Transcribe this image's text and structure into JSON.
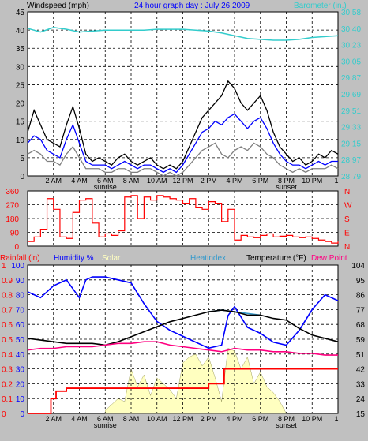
{
  "colors": {
    "bg": "#c0c0c0",
    "plot_bg": "#ffffff",
    "grid": "#000000",
    "wind_avg": "#0000ff",
    "wind_gust": "#000000",
    "wind_low": "#808080",
    "barometer": "#33cccc",
    "wind_dir": "#ff0000",
    "rainfall": "#ff0000",
    "humidity": "#0000ff",
    "solar": "#ffffc0",
    "heatindex": "#3399cc",
    "temperature": "#000000",
    "dew_point": "#ff0080",
    "title": "#0000ff"
  },
  "header": {
    "wind_label": "Windspeed (mph)",
    "title": "24 hour graph day : July 26 2009",
    "baro_label": "Barometer (in.)"
  },
  "legend": {
    "rainfall": "Rainfall (in)",
    "humidity": "Humidity %",
    "solar": "Solar",
    "heatindex": "Heatindex",
    "temperature": "Temperature (°F)",
    "dew_point": "Dew Point"
  },
  "x_axis": {
    "hours": [
      "2 AM",
      "4 AM",
      "6 AM",
      "8 AM",
      "10 AM",
      "12 PM",
      "2 PM",
      "4 PM",
      "6 PM",
      "8 PM",
      "10 PM",
      "1"
    ],
    "sunrise_label": "sunrise",
    "sunset_label": "sunset",
    "sunrise_hour": 6.0,
    "sunset_hour": 20.0
  },
  "chart_data": [
    {
      "type": "line",
      "panel": "wind_barometer",
      "x_range": [
        0,
        24
      ],
      "ylim_left": [
        0,
        45
      ],
      "ylim_right": [
        28.79,
        30.58
      ],
      "left_ticks": [
        "45",
        "40",
        "35",
        "30",
        "25",
        "20",
        "15",
        "10",
        "5",
        "0"
      ],
      "right_ticks": [
        "30.58",
        "30.40",
        "30.23",
        "30.05",
        "29.87",
        "29.69",
        "29.51",
        "29.33",
        "29.15",
        "28.97",
        "28.79"
      ],
      "series": [
        {
          "name": "Windspeed (mph)",
          "key": "wind_gust",
          "x": [
            0,
            0.5,
            1,
            1.5,
            2,
            2.5,
            3,
            3.5,
            4,
            4.5,
            5,
            5.5,
            6,
            6.5,
            7,
            7.5,
            8,
            8.5,
            9,
            9.5,
            10,
            10.5,
            11,
            11.5,
            12,
            12.5,
            13,
            13.5,
            14,
            14.5,
            15,
            15.5,
            16,
            16.5,
            17,
            17.5,
            18,
            18.5,
            19,
            19.5,
            20,
            20.5,
            21,
            21.5,
            22,
            22.5,
            23,
            23.5,
            24
          ],
          "values": [
            12,
            18,
            14,
            10,
            9,
            8,
            14,
            19,
            13,
            6,
            4,
            5,
            4,
            3,
            5,
            6,
            4,
            3,
            4,
            5,
            3,
            2,
            3,
            2,
            4,
            8,
            12,
            16,
            18,
            20,
            22,
            26,
            24,
            20,
            18,
            20,
            22,
            18,
            12,
            8,
            6,
            4,
            5,
            3,
            4,
            6,
            5,
            7,
            6
          ]
        },
        {
          "name": "Windspeed avg",
          "key": "wind_avg",
          "x": [
            0,
            0.5,
            1,
            1.5,
            2,
            2.5,
            3,
            3.5,
            4,
            4.5,
            5,
            5.5,
            6,
            6.5,
            7,
            7.5,
            8,
            8.5,
            9,
            9.5,
            10,
            10.5,
            11,
            11.5,
            12,
            12.5,
            13,
            13.5,
            14,
            14.5,
            15,
            15.5,
            16,
            16.5,
            17,
            17.5,
            18,
            18.5,
            19,
            19.5,
            20,
            20.5,
            21,
            21.5,
            22,
            22.5,
            23,
            23.5,
            24
          ],
          "values": [
            9,
            11,
            10,
            7,
            6,
            5,
            10,
            14,
            9,
            4,
            3,
            3,
            3,
            2,
            3,
            4,
            3,
            2,
            3,
            3,
            2,
            1,
            2,
            1,
            3,
            6,
            9,
            12,
            13,
            15,
            14,
            16,
            17,
            15,
            13,
            15,
            16,
            13,
            9,
            6,
            4,
            3,
            3,
            2,
            3,
            4,
            3,
            4,
            4
          ]
        },
        {
          "name": "Windspeed low",
          "key": "wind_low",
          "x": [
            0,
            0.5,
            1,
            1.5,
            2,
            2.5,
            3,
            3.5,
            4,
            4.5,
            5,
            5.5,
            6,
            6.5,
            7,
            7.5,
            8,
            8.5,
            9,
            9.5,
            10,
            10.5,
            11,
            11.5,
            12,
            12.5,
            13,
            13.5,
            14,
            14.5,
            15,
            15.5,
            16,
            16.5,
            17,
            17.5,
            18,
            18.5,
            19,
            19.5,
            20,
            20.5,
            21,
            21.5,
            22,
            22.5,
            23,
            23.5,
            24
          ],
          "values": [
            6,
            7,
            6,
            4,
            4,
            3,
            6,
            8,
            5,
            2,
            2,
            2,
            1,
            1,
            2,
            2,
            1,
            1,
            2,
            2,
            1,
            0,
            1,
            0,
            1,
            3,
            5,
            7,
            8,
            9,
            6,
            5,
            7,
            8,
            7,
            9,
            8,
            6,
            5,
            3,
            2,
            1,
            2,
            1,
            2,
            2,
            2,
            3,
            2
          ]
        },
        {
          "name": "Barometer (in.)",
          "key": "barometer",
          "x": [
            0,
            1,
            2,
            3,
            4,
            5,
            6,
            7,
            8,
            9,
            10,
            11,
            12,
            13,
            14,
            15,
            16,
            17,
            18,
            19,
            20,
            21,
            22,
            23,
            24
          ],
          "values": [
            30.4,
            30.36,
            30.41,
            30.39,
            30.36,
            30.37,
            30.38,
            30.38,
            30.38,
            30.38,
            30.39,
            30.39,
            30.39,
            30.38,
            30.37,
            30.35,
            30.32,
            30.29,
            30.28,
            30.27,
            30.27,
            30.28,
            30.3,
            30.31,
            30.32
          ]
        }
      ]
    },
    {
      "type": "line",
      "panel": "wind_direction",
      "x_range": [
        0,
        24
      ],
      "ylim": [
        0,
        360
      ],
      "left_ticks": [
        "360",
        "270",
        "180",
        "90",
        "0"
      ],
      "right_ticks": [
        "N",
        "W",
        "S",
        "E",
        "N"
      ],
      "series": [
        {
          "name": "Wind direction",
          "key": "wind_dir",
          "x": [
            0,
            0.5,
            1,
            1.5,
            2,
            2.5,
            3,
            3.5,
            4,
            4.5,
            5,
            5.5,
            6,
            6.5,
            7,
            7.5,
            8,
            8.5,
            9,
            9.5,
            10,
            10.5,
            11,
            11.5,
            12,
            12.5,
            13,
            13.5,
            14,
            14.5,
            15,
            15.5,
            16,
            16.5,
            17,
            17.5,
            18,
            18.5,
            19,
            19.5,
            20,
            20.5,
            21,
            21.5,
            22,
            22.5,
            23,
            23.5,
            24
          ],
          "values": [
            30,
            60,
            110,
            310,
            240,
            60,
            50,
            220,
            300,
            310,
            150,
            60,
            80,
            70,
            100,
            320,
            330,
            180,
            320,
            300,
            330,
            320,
            310,
            300,
            280,
            310,
            250,
            240,
            290,
            280,
            160,
            240,
            40,
            70,
            60,
            55,
            70,
            80,
            60,
            65,
            70,
            60,
            55,
            60,
            50,
            40,
            30,
            20,
            30
          ]
        }
      ]
    },
    {
      "type": "line",
      "panel": "temp_humidity",
      "x_range": [
        0,
        24
      ],
      "rain_ticks": [
        "1",
        "0.9",
        "0.8",
        "0.7",
        "0.6",
        "0.5",
        "0.4",
        "0.3",
        "0.2",
        "0.1",
        "0"
      ],
      "humidity_ticks": [
        "100",
        "90",
        "80",
        "70",
        "60",
        "50",
        "40",
        "30",
        "20",
        "10",
        "0"
      ],
      "temp_ticks": [
        "104",
        "95",
        "86",
        "77",
        "68",
        "59",
        "51",
        "42",
        "33",
        "24",
        "15"
      ],
      "ylim_rain": [
        0,
        1
      ],
      "ylim_humidity": [
        0,
        100
      ],
      "ylim_temp": [
        15,
        104
      ],
      "series": [
        {
          "name": "Rainfall (in)",
          "key": "rainfall",
          "x": [
            0,
            1.3,
            1.8,
            2.2,
            3.0,
            13.9,
            14.0,
            15.1,
            15.2,
            24
          ],
          "values": [
            0,
            0,
            0.1,
            0.15,
            0.17,
            0.17,
            0.2,
            0.2,
            0.3,
            0.3
          ]
        },
        {
          "name": "Humidity %",
          "key": "humidity",
          "x": [
            0,
            1,
            2,
            3,
            3.5,
            4,
            4.5,
            5,
            6,
            7,
            8,
            9,
            10,
            11,
            12,
            13,
            14,
            15,
            15.5,
            16,
            17,
            18,
            19,
            20,
            21,
            22,
            23,
            24
          ],
          "values": [
            82,
            78,
            86,
            90,
            84,
            78,
            90,
            92,
            92,
            90,
            88,
            74,
            62,
            56,
            52,
            48,
            44,
            46,
            66,
            72,
            58,
            54,
            48,
            46,
            56,
            70,
            80,
            76
          ]
        },
        {
          "name": "Solar",
          "key": "solar",
          "x": [
            6,
            6.5,
            7,
            7.5,
            8,
            8.5,
            9,
            9.5,
            10,
            10.5,
            11,
            11.5,
            12,
            12.5,
            13,
            13.5,
            14,
            14.5,
            15,
            15.5,
            16,
            16.5,
            17,
            17.5,
            18,
            18.5,
            19,
            19.5,
            20
          ],
          "values": [
            2,
            6,
            10,
            8,
            30,
            18,
            26,
            12,
            24,
            20,
            16,
            10,
            34,
            38,
            40,
            32,
            38,
            24,
            8,
            44,
            42,
            30,
            38,
            20,
            28,
            18,
            14,
            8,
            0
          ]
        },
        {
          "name": "Heatindex",
          "key": "heatindex",
          "x": [
            14,
            15,
            16,
            17,
            18
          ],
          "values": [
            76,
            77,
            76,
            75,
            74
          ]
        },
        {
          "name": "Temperature (°F)",
          "key": "temperature",
          "x": [
            0,
            1,
            2,
            3,
            4,
            5,
            6,
            7,
            8,
            9,
            10,
            11,
            12,
            13,
            14,
            15,
            16,
            17,
            18,
            19,
            20,
            21,
            22,
            23,
            24
          ],
          "values": [
            60,
            59,
            58,
            57,
            57,
            57,
            56,
            58,
            61,
            64,
            67,
            70,
            72,
            74,
            76,
            77,
            76,
            74,
            74,
            72,
            71,
            66,
            62,
            60,
            58
          ]
        },
        {
          "name": "Dew Point",
          "key": "dew_point",
          "x": [
            0,
            1,
            2,
            3,
            4,
            5,
            6,
            7,
            8,
            9,
            10,
            11,
            12,
            13,
            14,
            15,
            16,
            17,
            18,
            19,
            20,
            21,
            22,
            23,
            24
          ],
          "values": [
            53,
            54,
            54,
            55,
            55,
            55,
            56,
            57,
            57,
            58,
            58,
            56,
            55,
            54,
            53,
            52,
            54,
            53,
            53,
            52,
            52,
            51,
            51,
            50,
            50
          ]
        }
      ]
    }
  ]
}
